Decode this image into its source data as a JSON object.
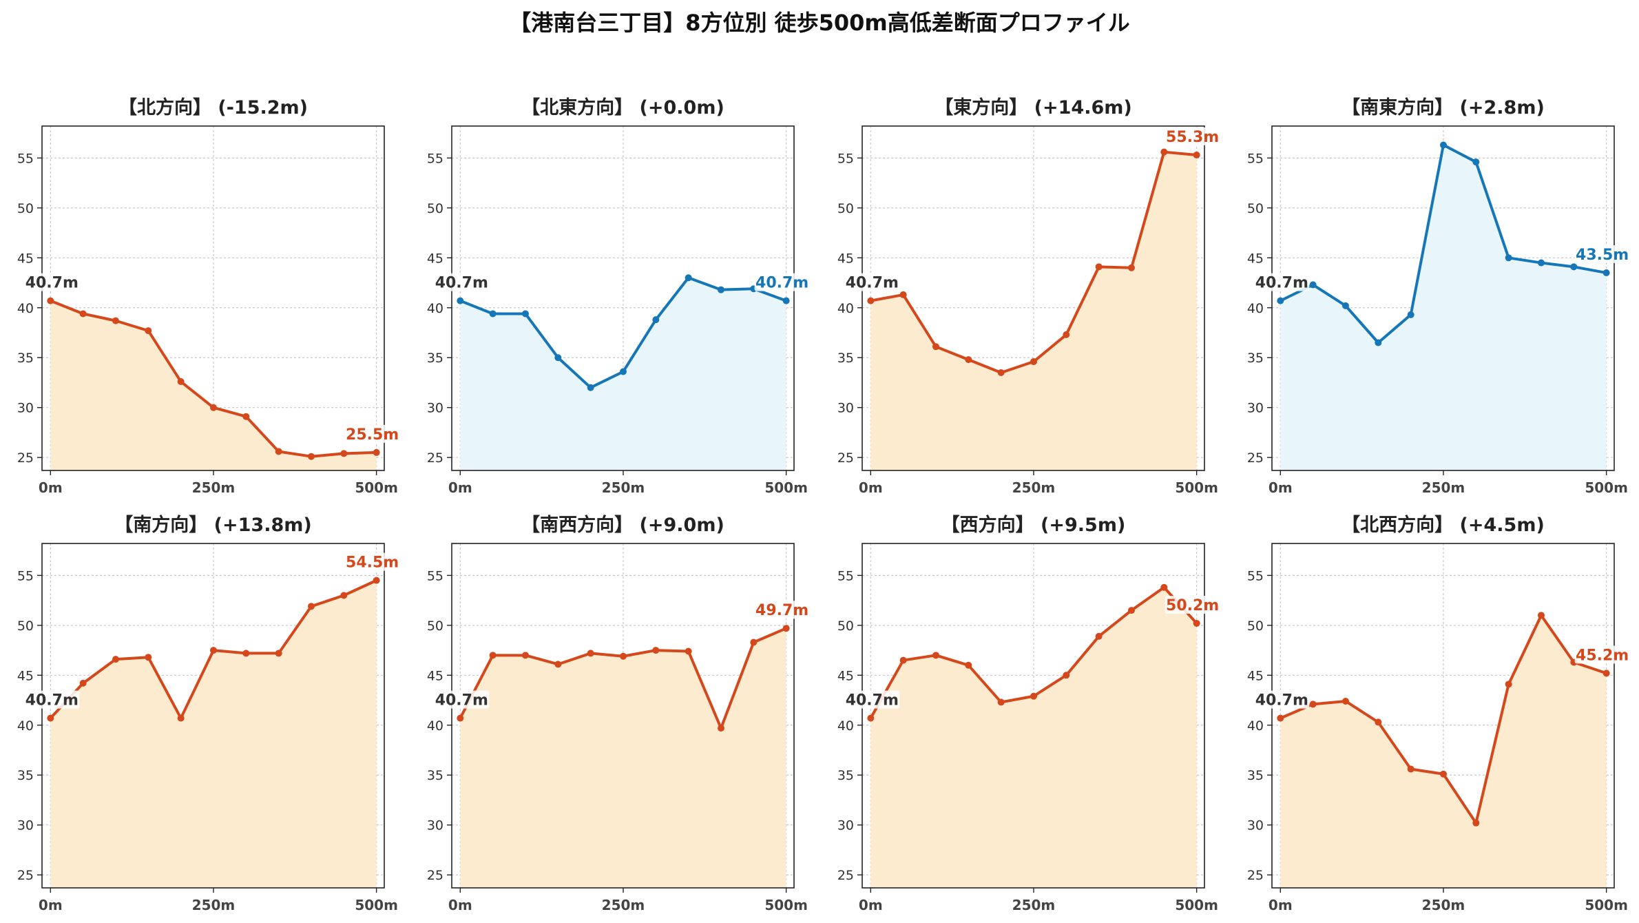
{
  "title": "【港南台三丁目】8方位別 徒歩500m高低差断面プロファイル",
  "colors": {
    "up": "#d4481b",
    "up_fill": "#fdebd0",
    "down": "#1577b8",
    "down_fill": "#e8f6fb",
    "start_label": "#333333",
    "grid": "#c8c8c8"
  },
  "chart_data": [
    {
      "type": "line",
      "title": "【北方向】 (-15.2m)",
      "trend": "down",
      "x": [
        0,
        50,
        100,
        150,
        200,
        250,
        300,
        350,
        400,
        450,
        500
      ],
      "y": [
        40.7,
        39.4,
        38.7,
        37.7,
        32.6,
        30.0,
        29.1,
        25.6,
        25.1,
        25.4,
        25.5
      ],
      "start_label": "40.7m",
      "end_label": "25.5m",
      "ylim": [
        23.7,
        58.2
      ],
      "yticks": [
        25,
        30,
        35,
        40,
        45,
        50,
        55
      ],
      "xticks": [
        "0m",
        "250m",
        "500m"
      ],
      "grid": true
    },
    {
      "type": "line",
      "title": "【北東方向】 (+0.0m)",
      "trend": "flat",
      "x": [
        0,
        50,
        100,
        150,
        200,
        250,
        300,
        350,
        400,
        450,
        500
      ],
      "y": [
        40.7,
        39.4,
        39.4,
        35.0,
        32.0,
        33.6,
        38.8,
        43.0,
        41.8,
        41.9,
        40.7
      ],
      "start_label": "40.7m",
      "end_label": "40.7m",
      "ylim": [
        23.7,
        58.2
      ],
      "yticks": [
        25,
        30,
        35,
        40,
        45,
        50,
        55
      ],
      "xticks": [
        "0m",
        "250m",
        "500m"
      ],
      "grid": true
    },
    {
      "type": "line",
      "title": "【東方向】 (+14.6m)",
      "trend": "up",
      "x": [
        0,
        50,
        100,
        150,
        200,
        250,
        300,
        350,
        400,
        450,
        500
      ],
      "y": [
        40.7,
        41.3,
        36.1,
        34.8,
        33.5,
        34.6,
        37.3,
        44.1,
        44.0,
        55.6,
        55.3
      ],
      "start_label": "40.7m",
      "end_label": "55.3m",
      "ylim": [
        23.7,
        58.2
      ],
      "yticks": [
        25,
        30,
        35,
        40,
        45,
        50,
        55
      ],
      "xticks": [
        "0m",
        "250m",
        "500m"
      ],
      "grid": true
    },
    {
      "type": "line",
      "title": "【南東方向】 (+2.8m)",
      "trend": "flat",
      "x": [
        0,
        50,
        100,
        150,
        200,
        250,
        300,
        350,
        400,
        450,
        500
      ],
      "y": [
        40.7,
        42.3,
        40.2,
        36.5,
        39.3,
        56.3,
        54.6,
        45.0,
        44.5,
        44.1,
        43.5
      ],
      "start_label": "40.7m",
      "end_label": "43.5m",
      "ylim": [
        23.7,
        58.2
      ],
      "yticks": [
        25,
        30,
        35,
        40,
        45,
        50,
        55
      ],
      "xticks": [
        "0m",
        "250m",
        "500m"
      ],
      "grid": true
    },
    {
      "type": "line",
      "title": "【南方向】 (+13.8m)",
      "trend": "up",
      "x": [
        0,
        50,
        100,
        150,
        200,
        250,
        300,
        350,
        400,
        450,
        500
      ],
      "y": [
        40.7,
        44.2,
        46.6,
        46.8,
        40.7,
        47.5,
        47.2,
        47.2,
        51.9,
        53.0,
        54.5
      ],
      "start_label": "40.7m",
      "end_label": "54.5m",
      "ylim": [
        23.7,
        58.2
      ],
      "yticks": [
        25,
        30,
        35,
        40,
        45,
        50,
        55
      ],
      "xticks": [
        "0m",
        "250m",
        "500m"
      ],
      "grid": true
    },
    {
      "type": "line",
      "title": "【南西方向】 (+9.0m)",
      "trend": "up",
      "x": [
        0,
        50,
        100,
        150,
        200,
        250,
        300,
        350,
        400,
        450,
        500
      ],
      "y": [
        40.7,
        47.0,
        47.0,
        46.1,
        47.2,
        46.9,
        47.5,
        47.4,
        39.7,
        48.3,
        49.7
      ],
      "start_label": "40.7m",
      "end_label": "49.7m",
      "ylim": [
        23.7,
        58.2
      ],
      "yticks": [
        25,
        30,
        35,
        40,
        45,
        50,
        55
      ],
      "xticks": [
        "0m",
        "250m",
        "500m"
      ],
      "grid": true
    },
    {
      "type": "line",
      "title": "【西方向】 (+9.5m)",
      "trend": "up",
      "x": [
        0,
        50,
        100,
        150,
        200,
        250,
        300,
        350,
        400,
        450,
        500
      ],
      "y": [
        40.7,
        46.5,
        47.0,
        46.0,
        42.3,
        42.9,
        45.0,
        48.9,
        51.5,
        53.8,
        50.2
      ],
      "start_label": "40.7m",
      "end_label": "50.2m",
      "ylim": [
        23.7,
        58.2
      ],
      "yticks": [
        25,
        30,
        35,
        40,
        45,
        50,
        55
      ],
      "xticks": [
        "0m",
        "250m",
        "500m"
      ],
      "grid": true
    },
    {
      "type": "line",
      "title": "【北西方向】 (+4.5m)",
      "trend": "up",
      "x": [
        0,
        50,
        100,
        150,
        200,
        250,
        300,
        350,
        400,
        450,
        500
      ],
      "y": [
        40.7,
        42.1,
        42.4,
        40.3,
        35.6,
        35.1,
        30.2,
        44.1,
        51.0,
        46.3,
        45.2
      ],
      "start_label": "40.7m",
      "end_label": "45.2m",
      "ylim": [
        23.7,
        58.2
      ],
      "yticks": [
        25,
        30,
        35,
        40,
        45,
        50,
        55
      ],
      "xticks": [
        "0m",
        "250m",
        "500m"
      ],
      "grid": true
    }
  ]
}
